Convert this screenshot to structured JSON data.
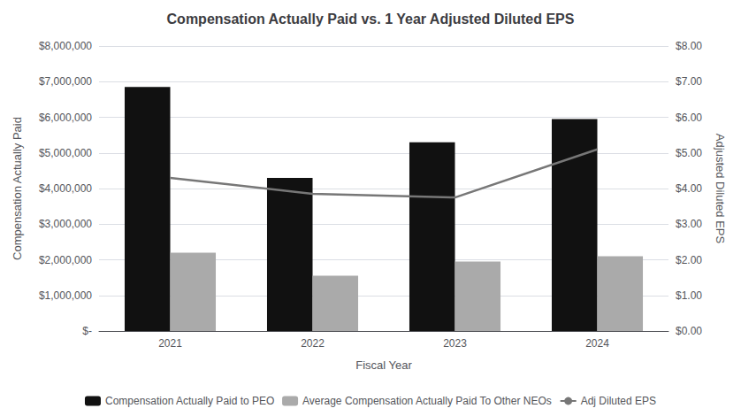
{
  "chart_data": {
    "type": "bar",
    "title": "Compensation Actually Paid vs. 1 Year Adjusted Diluted EPS",
    "categories": [
      "2021",
      "2022",
      "2023",
      "2024"
    ],
    "xlabel": "Fiscal Year",
    "ylabel": "Compensation Actually Paid",
    "y2label": "Adjusted Diluted EPS",
    "series": [
      {
        "name": "Compensation Actually Paid to PEO",
        "type": "bar",
        "color": "#111111",
        "values": [
          6850000,
          4300000,
          5300000,
          5950000
        ]
      },
      {
        "name": "Average Compensation Actually Paid To Other NEOs",
        "type": "bar",
        "color": "#aaaaaa",
        "values": [
          2200000,
          1550000,
          1950000,
          2100000
        ]
      },
      {
        "name": "Adj Diluted EPS",
        "type": "line",
        "axis": "y2",
        "color": "#777777",
        "marker": "none",
        "values": [
          4.3,
          3.85,
          3.75,
          5.1
        ]
      }
    ],
    "ylim": [
      0,
      8000000
    ],
    "yticks": [
      {
        "value": 0,
        "label": "$-"
      },
      {
        "value": 1000000,
        "label": "$1,000,000"
      },
      {
        "value": 2000000,
        "label": "$2,000,000"
      },
      {
        "value": 3000000,
        "label": "$3,000,000"
      },
      {
        "value": 4000000,
        "label": "$4,000,000"
      },
      {
        "value": 5000000,
        "label": "$5,000,000"
      },
      {
        "value": 6000000,
        "label": "$6,000,000"
      },
      {
        "value": 7000000,
        "label": "$7,000,000"
      },
      {
        "value": 8000000,
        "label": "$8,000,000"
      }
    ],
    "y2lim": [
      0,
      8.0
    ],
    "y2ticks": [
      {
        "value": 0.0,
        "label": "$0.00"
      },
      {
        "value": 1.0,
        "label": "$1.00"
      },
      {
        "value": 2.0,
        "label": "$2.00"
      },
      {
        "value": 3.0,
        "label": "$3.00"
      },
      {
        "value": 4.0,
        "label": "$4.00"
      },
      {
        "value": 5.0,
        "label": "$5.00"
      },
      {
        "value": 6.0,
        "label": "$6.00"
      },
      {
        "value": 7.0,
        "label": "$7.00"
      },
      {
        "value": 8.0,
        "label": "$8.00"
      }
    ],
    "grid": true,
    "legend": "bottom"
  }
}
